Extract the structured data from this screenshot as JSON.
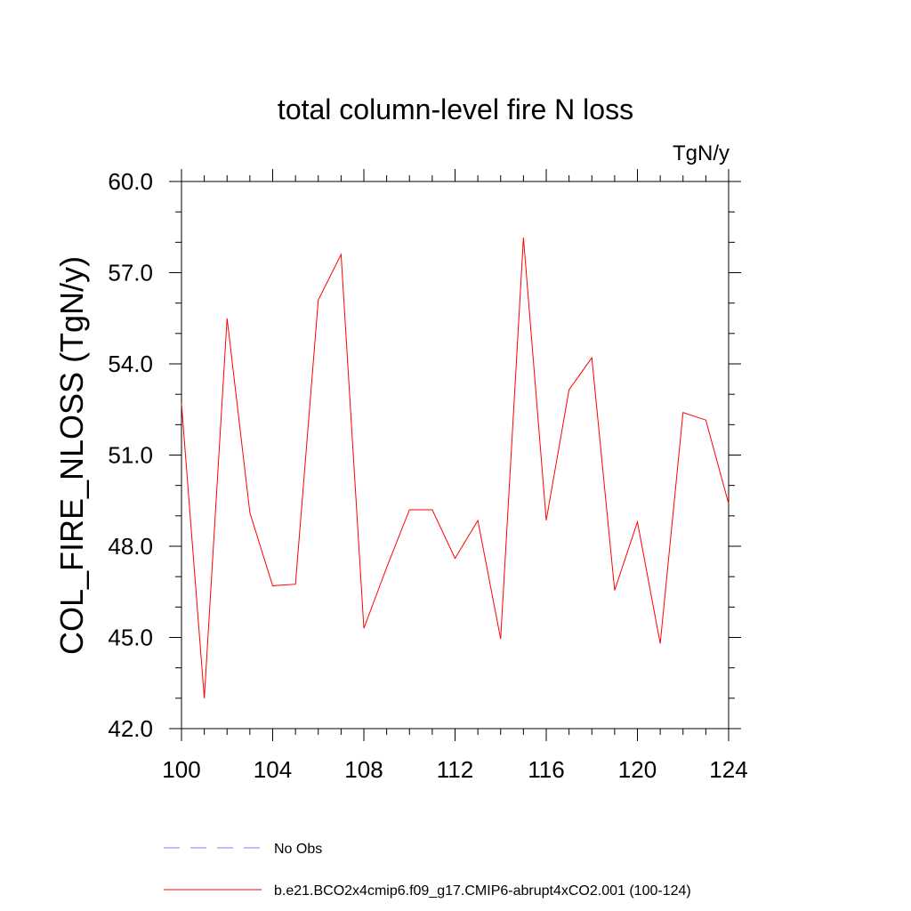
{
  "chart_data": {
    "type": "line",
    "title": "total column-level fire N loss",
    "units_label": "TgN/y",
    "xlabel": "",
    "ylabel": "COL_FIRE_NLOSS  (TgN/y)",
    "xlim": [
      100,
      124
    ],
    "ylim": [
      42.0,
      60.0
    ],
    "x_ticks": [
      100,
      104,
      108,
      112,
      116,
      120,
      124
    ],
    "y_ticks": [
      "42.0",
      "45.0",
      "48.0",
      "51.0",
      "54.0",
      "57.0",
      "60.0"
    ],
    "x": [
      100,
      101,
      102,
      103,
      104,
      105,
      106,
      107,
      108,
      109,
      110,
      111,
      112,
      113,
      114,
      115,
      116,
      117,
      118,
      119,
      120,
      121,
      122,
      123,
      124
    ],
    "series": [
      {
        "name": "b.e21.BCO2x4cmip6.f09_g17.CMIP6-abrupt4xCO2.001 (100-124)",
        "color": "#ff0000",
        "style": "solid",
        "values": [
          52.7,
          43.0,
          55.5,
          49.1,
          46.7,
          46.75,
          56.1,
          57.6,
          45.3,
          47.3,
          49.2,
          49.2,
          47.6,
          48.85,
          44.95,
          58.15,
          48.85,
          53.15,
          54.2,
          46.55,
          48.8,
          44.8,
          52.4,
          52.15,
          49.4
        ]
      }
    ],
    "legend": [
      {
        "label": "No Obs",
        "color": "#7f7fff",
        "style": "dashed"
      },
      {
        "label": "b.e21.BCO2x4cmip6.f09_g17.CMIP6-abrupt4xCO2.001 (100-124)",
        "color": "#ff0000",
        "style": "solid"
      }
    ],
    "legend_position": "bottom"
  }
}
